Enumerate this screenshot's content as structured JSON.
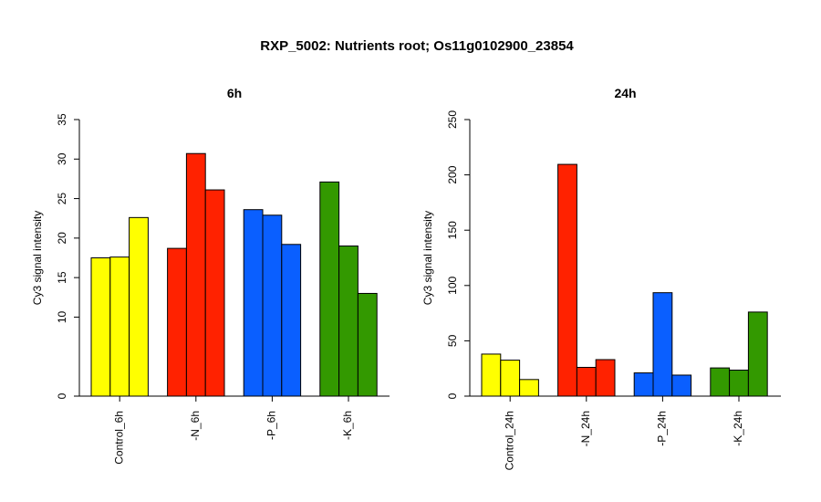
{
  "title": "RXP_5002: Nutrients root; Os11g0102900_23854",
  "chart_data": [
    {
      "type": "bar",
      "title": "6h",
      "ylabel": "Cy3 signal intensity",
      "xlabel": "",
      "ylim": [
        0,
        35
      ],
      "yticks": [
        0,
        10,
        15,
        20,
        25,
        30,
        35
      ],
      "categories": [
        "Control_6h",
        "-N_6h",
        "-P_6h",
        "-K_6h"
      ],
      "colors": [
        "#ffff00",
        "#ff2200",
        "#0a5fff",
        "#339900"
      ],
      "values": [
        [
          17.5,
          17.6,
          22.6
        ],
        [
          18.7,
          30.7,
          26.1
        ],
        [
          23.6,
          22.9,
          19.2
        ],
        [
          27.1,
          19.0,
          13.0
        ]
      ],
      "grid": false,
      "legend": "none"
    },
    {
      "type": "bar",
      "title": "24h",
      "ylabel": "Cy3 signal intensity",
      "xlabel": "",
      "ylim": [
        0,
        250
      ],
      "yticks": [
        0,
        50,
        100,
        150,
        200,
        250
      ],
      "categories": [
        "Control_24h",
        "-N_24h",
        "-P_24h",
        "-K_24h"
      ],
      "colors": [
        "#ffff00",
        "#ff2200",
        "#0a5fff",
        "#339900"
      ],
      "values": [
        [
          38,
          32.5,
          15
        ],
        [
          209.5,
          26,
          33
        ],
        [
          21,
          93.5,
          19
        ],
        [
          25.5,
          23.5,
          76
        ]
      ],
      "grid": false,
      "legend": "none"
    }
  ]
}
